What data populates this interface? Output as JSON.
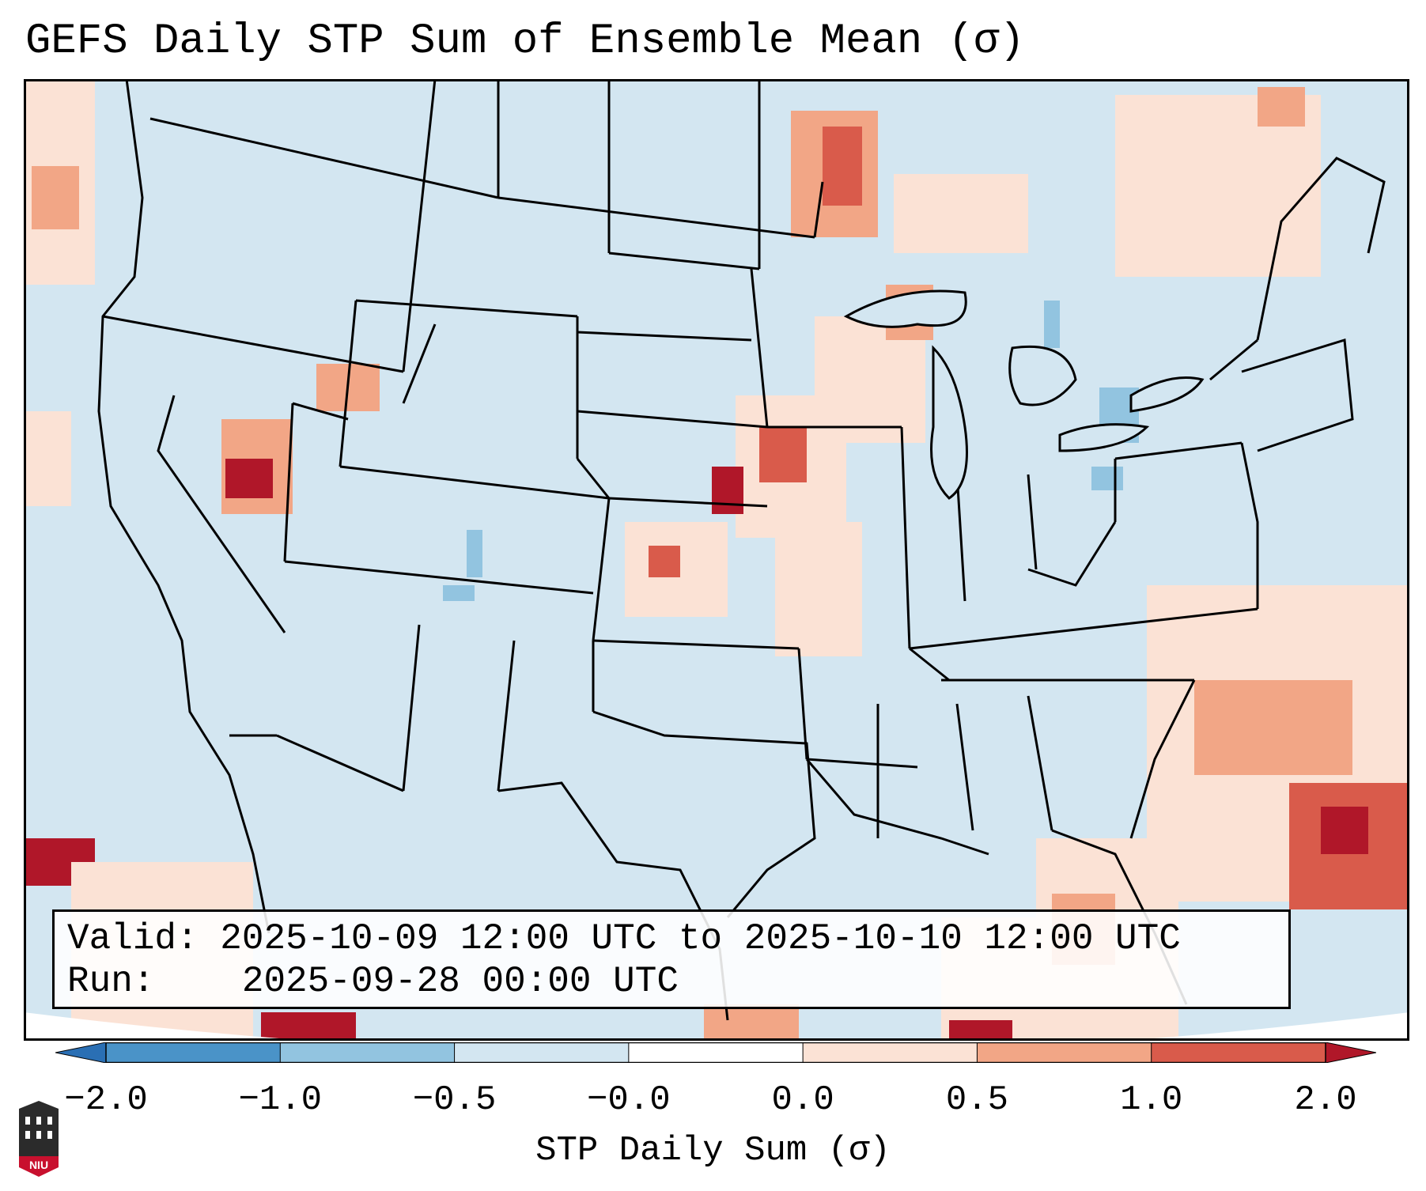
{
  "title": "GEFS Daily STP Sum of Ensemble Mean (σ)",
  "info": {
    "valid_label": "Valid:",
    "valid_value": "2025-10-09 12:00 UTC to 2025-10-10 12:00 UTC",
    "run_label": "Run:",
    "run_value": "2025-09-28 00:00 UTC"
  },
  "colorbar": {
    "label": "STP Daily Sum (σ)",
    "ticks": [
      "−2.0",
      "−1.0",
      "−0.5",
      "−0.0",
      "0.0",
      "0.5",
      "1.0",
      "2.0"
    ],
    "colors": [
      "#2a6fb4",
      "#4a93c8",
      "#92c4e0",
      "#d3e6f1",
      "#fbe2d5",
      "#f2a686",
      "#d95b4b",
      "#b01729"
    ],
    "extend": "both"
  },
  "map": {
    "background_color": "#d3e6f1",
    "description_region": "Contiguous United States",
    "features": [
      "state-borders",
      "coastlines",
      "great-lakes"
    ]
  },
  "logo": {
    "text": "NIU"
  }
}
